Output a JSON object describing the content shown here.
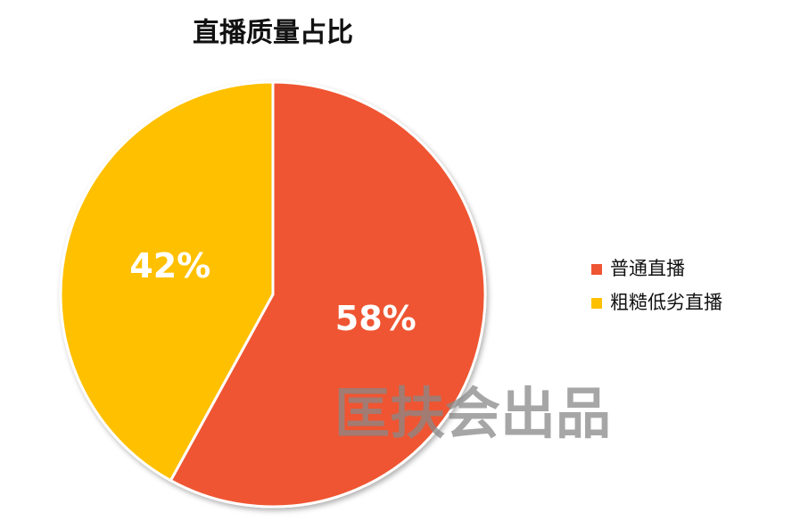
{
  "chart_data": {
    "type": "pie",
    "title": "直播质量占比",
    "categories": [
      "普通直播",
      "粗糙低劣直播"
    ],
    "values": [
      58,
      42
    ],
    "value_labels": [
      "58%",
      "42%"
    ],
    "colors": [
      "#ef5533",
      "#ffc000"
    ],
    "legend": "right",
    "watermark": "匡扶会出品"
  }
}
